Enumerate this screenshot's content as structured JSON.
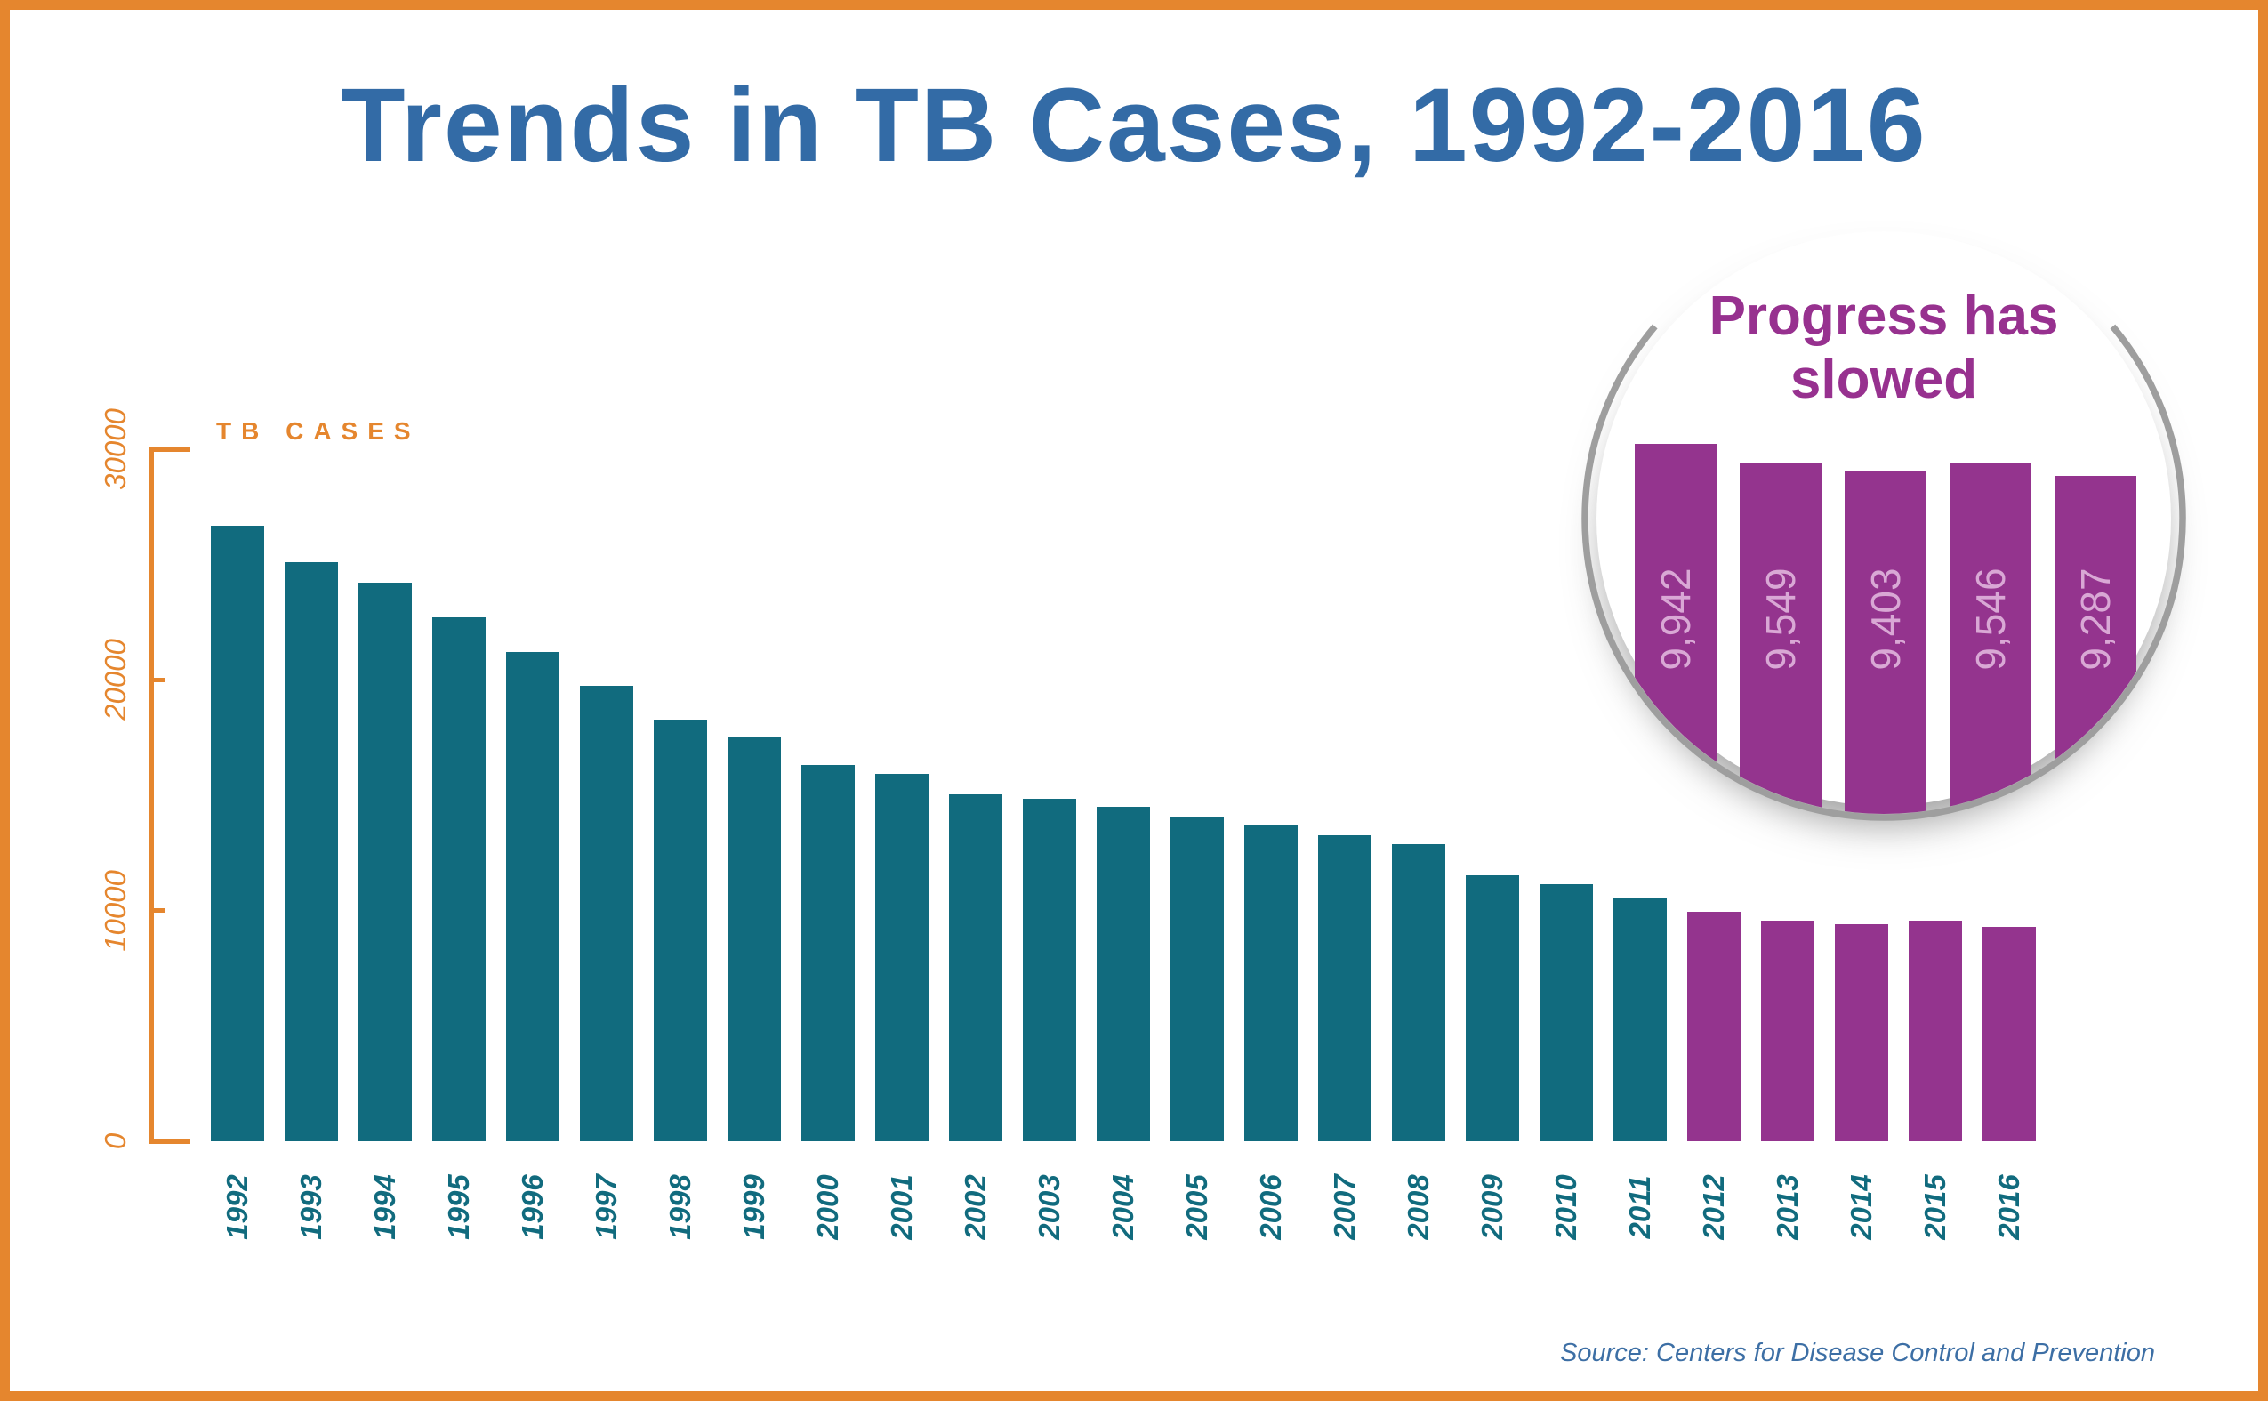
{
  "page": {
    "title": "Trends in TB Cases, 1992-2016",
    "source": "Source: Centers for Disease Control and Prevention"
  },
  "colors": {
    "frame_orange": "#E5862E",
    "axis_orange": "#E5862E",
    "title_blue": "#336BA6",
    "bar_teal": "#116B7E",
    "bar_purple": "#94348E",
    "callout_purple": "#97318F",
    "callout_value_text": "#D9A8D5",
    "ring_gray": "#9E9E9E",
    "source_blue": "#3D6FA5"
  },
  "chart_data": {
    "type": "bar",
    "title": "Trends in TB Cases, 1992-2016",
    "ylabel": "TB CASES",
    "ylim": [
      0,
      30000
    ],
    "grid": false,
    "y_ticks": [
      0,
      10000,
      20000,
      30000
    ],
    "y_tick_labels": [
      "0",
      "10000",
      "20000",
      "30000"
    ],
    "categories": [
      "1992",
      "1993",
      "1994",
      "1995",
      "1996",
      "1997",
      "1998",
      "1999",
      "2000",
      "2001",
      "2002",
      "2003",
      "2004",
      "2005",
      "2006",
      "2007",
      "2008",
      "2009",
      "2010",
      "2011",
      "2012",
      "2013",
      "2014",
      "2015",
      "2016"
    ],
    "values": [
      26673,
      25102,
      24206,
      22726,
      21210,
      19751,
      18286,
      17499,
      16308,
      15945,
      15055,
      14835,
      14499,
      14063,
      13728,
      13281,
      12898,
      11523,
      11161,
      10510,
      9942,
      9549,
      9403,
      9546,
      9287
    ],
    "highlight_start": "2012",
    "callout": {
      "title": "Progress has slowed",
      "years": [
        "2012",
        "2013",
        "2014",
        "2015",
        "2016"
      ],
      "values": [
        9942,
        9549,
        9403,
        9546,
        9287
      ],
      "value_labels": [
        "9,942",
        "9,549",
        "9,403",
        "9,546",
        "9,287"
      ]
    }
  }
}
